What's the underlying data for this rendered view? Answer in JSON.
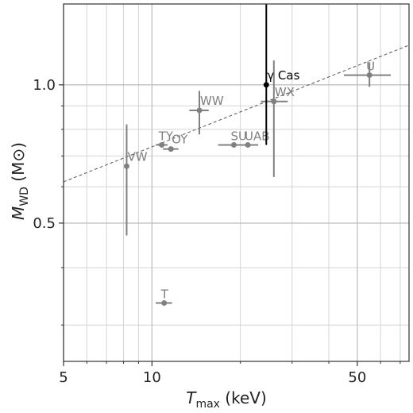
{
  "chart_data": {
    "type": "scatter",
    "x_scale": "log",
    "y_scale": "log",
    "xlim": [
      5,
      75
    ],
    "ylim": [
      0.25,
      1.5
    ],
    "x_major_ticks": [
      5,
      10,
      50
    ],
    "x_minor_ticks": [
      6,
      7,
      8,
      9,
      20,
      30,
      40,
      60,
      70
    ],
    "y_major_ticks": [
      0.5,
      1.0
    ],
    "y_minor_ticks": [
      0.3,
      0.4,
      0.6,
      0.7,
      0.8,
      0.9
    ],
    "x_tick_labels": [
      "5",
      "10",
      "50"
    ],
    "y_tick_labels": [
      "0.5",
      "1.0"
    ],
    "xlabel": {
      "main": "T",
      "sub": "max",
      "rest": " (keV)"
    },
    "ylabel": {
      "main": "M",
      "sub": "WD",
      "rest": " (M",
      "sym": "⊙",
      "close": ")"
    },
    "grid": true,
    "trend_line": {
      "style": "dashed",
      "color": "#555555",
      "points": [
        [
          5,
          0.615
        ],
        [
          75,
          1.22
        ]
      ]
    },
    "highlight": {
      "label": "γ Cas",
      "x": 24.5,
      "y": 1.0,
      "yerr_low": 0.74,
      "yerr_high": 1.5,
      "color": "#000000"
    },
    "points": [
      {
        "label": "VW",
        "x": 8.2,
        "y": 0.665,
        "xerr": [
          8.2,
          8.2
        ],
        "yerr": [
          0.47,
          0.82
        ]
      },
      {
        "label": "TY",
        "x": 10.8,
        "y": 0.74,
        "xerr": [
          10.3,
          11.3
        ],
        "yerr": [
          0.74,
          0.74
        ]
      },
      {
        "label": "OY",
        "x": 11.6,
        "y": 0.725,
        "xerr": [
          10.9,
          12.3
        ],
        "yerr": [
          0.725,
          0.725
        ]
      },
      {
        "label": "WW",
        "x": 14.5,
        "y": 0.88,
        "xerr": [
          13.4,
          15.6
        ],
        "yerr": [
          0.78,
          0.97
        ]
      },
      {
        "label": "SU",
        "x": 19.0,
        "y": 0.74,
        "xerr": [
          16.8,
          21.2
        ],
        "yerr": [
          0.74,
          0.74
        ]
      },
      {
        "label": "UAB",
        "x": 21.2,
        "y": 0.74,
        "xerr": [
          19.5,
          23.0
        ],
        "yerr": [
          0.74,
          0.74
        ]
      },
      {
        "label": "WX",
        "x": 26.0,
        "y": 0.92,
        "xerr": [
          23.5,
          29.0
        ],
        "yerr": [
          0.63,
          1.13
        ]
      },
      {
        "label": "U",
        "x": 55.0,
        "y": 1.05,
        "xerr": [
          45.0,
          65.0
        ],
        "yerr": [
          0.99,
          1.12
        ]
      },
      {
        "label": "T",
        "x": 11.0,
        "y": 0.335,
        "xerr": [
          10.3,
          11.7
        ],
        "yerr": [
          0.335,
          0.335
        ]
      }
    ],
    "point_color": "#808080",
    "label_positions": {
      "VW": "right-up",
      "TY": "up",
      "OY": "right-up",
      "WW": "right-up",
      "SU": "up",
      "UAB": "up",
      "WX": "right-up",
      "U": "up",
      "T": "up",
      "γ Cas": "right"
    }
  }
}
